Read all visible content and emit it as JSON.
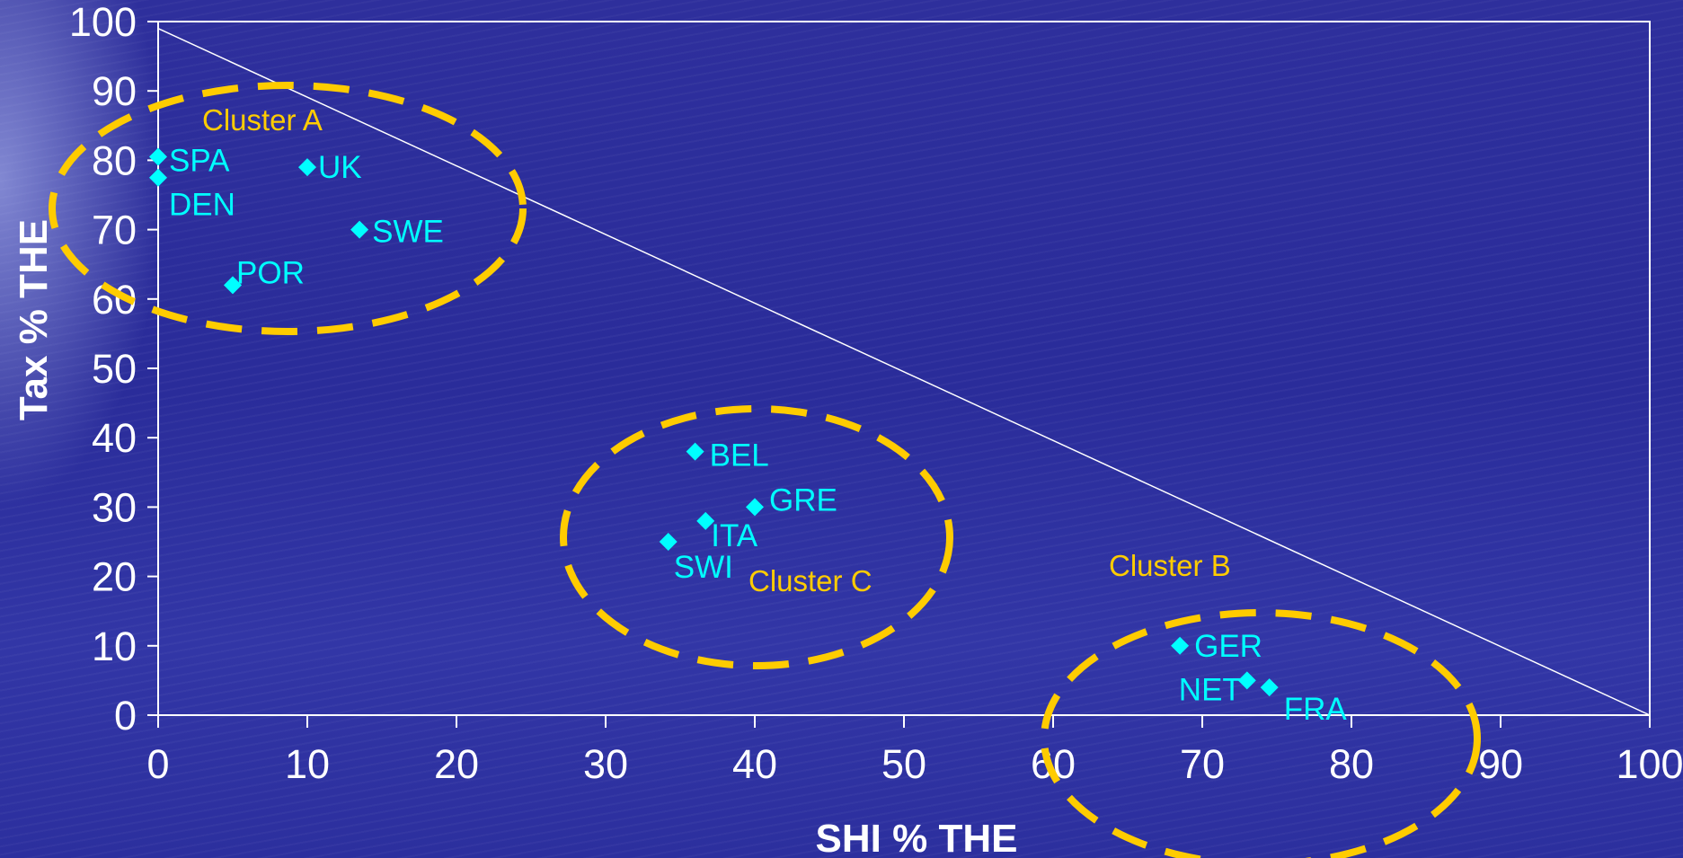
{
  "chart_data": {
    "type": "scatter",
    "xlabel": "SHI % THE",
    "ylabel": "Tax % THE",
    "xlim": [
      0,
      100
    ],
    "ylim": [
      0,
      100
    ],
    "x_ticks": [
      0,
      10,
      20,
      30,
      40,
      50,
      60,
      70,
      80,
      90,
      100
    ],
    "y_ticks": [
      0,
      10,
      20,
      30,
      40,
      50,
      60,
      70,
      80,
      90,
      100
    ],
    "grid": false,
    "marker_color": "#00ffff",
    "cluster_color": "#ffcc00",
    "axis_color": "#ffffff",
    "reference_line": {
      "from": [
        0,
        99
      ],
      "to": [
        100,
        0
      ]
    },
    "points": [
      {
        "label": "SPA",
        "x": 0,
        "y": 80.5
      },
      {
        "label": "DEN",
        "x": 0,
        "y": 77.5
      },
      {
        "label": "UK",
        "x": 10,
        "y": 79
      },
      {
        "label": "SWE",
        "x": 13.5,
        "y": 70
      },
      {
        "label": "POR",
        "x": 5,
        "y": 62
      },
      {
        "label": "BEL",
        "x": 36,
        "y": 38
      },
      {
        "label": "GRE",
        "x": 40,
        "y": 30
      },
      {
        "label": "ITA",
        "x": 36.7,
        "y": 28
      },
      {
        "label": "SWI",
        "x": 34.2,
        "y": 25
      },
      {
        "label": "GER",
        "x": 68.5,
        "y": 10
      },
      {
        "label": "NET",
        "x": 73,
        "y": 5
      },
      {
        "label": "FRA",
        "x": 74.5,
        "y": 4
      }
    ],
    "clusters": [
      {
        "label": "Cluster A",
        "members": [
          "SPA",
          "DEN",
          "UK",
          "SWE",
          "POR"
        ]
      },
      {
        "label": "Cluster C",
        "members": [
          "BEL",
          "GRE",
          "ITA",
          "SWI"
        ]
      },
      {
        "label": "Cluster B",
        "members": [
          "GER",
          "NET",
          "FRA"
        ]
      }
    ]
  }
}
